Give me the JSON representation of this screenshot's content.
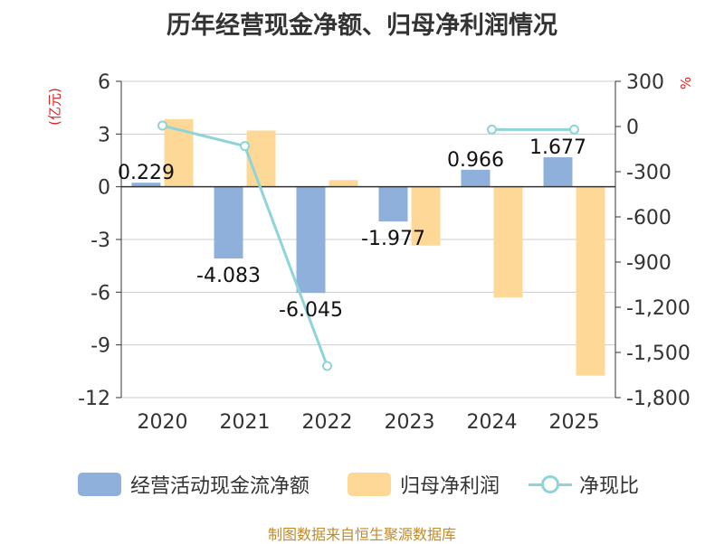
{
  "title": "历年经营现金净额、归母净利润情况",
  "left_unit": "(亿元)",
  "right_unit": "%",
  "footer": "制图数据来自恒生聚源数据库",
  "colors": {
    "cash": "#8eb0db",
    "profit": "#fed897",
    "ratio": "#8ed4d8",
    "axis": "#333333",
    "grid": "#cccccc",
    "unit": "#e02020"
  },
  "legend": {
    "cash": "经营活动现金流净额",
    "profit": "归母净利润",
    "ratio": "净现比"
  },
  "chart_data": {
    "type": "bar",
    "title": "历年经营现金净额、归母净利润情况",
    "categories": [
      "2020",
      "2021",
      "2022",
      "2023",
      "2024",
      "2025"
    ],
    "series": [
      {
        "name": "经营活动现金流净额",
        "type": "bar",
        "axis": "left",
        "values": [
          0.229,
          -4.083,
          -6.045,
          -1.977,
          0.966,
          1.677
        ],
        "labels": [
          "0.229",
          "-4.083",
          "-6.045",
          "-1.977",
          "0.966",
          "1.677"
        ]
      },
      {
        "name": "归母净利润",
        "type": "bar",
        "axis": "left",
        "values": [
          3.85,
          3.2,
          0.38,
          -3.35,
          -6.3,
          -10.75
        ]
      },
      {
        "name": "净现比",
        "type": "line",
        "axis": "right",
        "values": [
          6,
          -130,
          -1590,
          null,
          -20,
          -20
        ]
      }
    ],
    "ylabel_left": "(亿元)",
    "ylabel_right": "%",
    "ylim_left": [
      -12,
      6
    ],
    "yticks_left": [
      6,
      3,
      0,
      -3,
      -6,
      -9,
      -12
    ],
    "ytick_labels_left": [
      "6",
      "3",
      "0",
      "-3",
      "-6",
      "-9",
      "-12"
    ],
    "ylim_right": [
      -1800,
      300
    ],
    "yticks_right": [
      300,
      0,
      -300,
      -600,
      -900,
      -1200,
      -1500,
      -1800
    ],
    "ytick_labels_right": [
      "300",
      "0",
      "-300",
      "-600",
      "-900",
      "-1,200",
      "-1,500",
      "-1,800"
    ],
    "legend_position": "bottom"
  }
}
